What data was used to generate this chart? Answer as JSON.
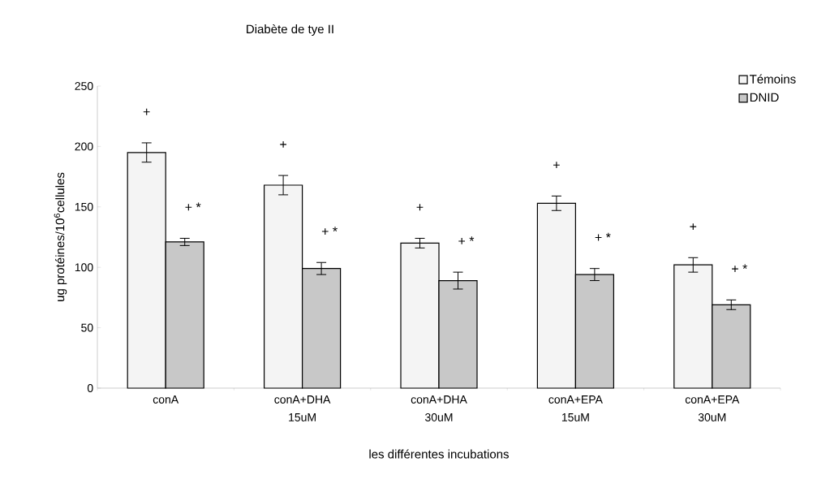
{
  "chart_data": {
    "type": "bar",
    "title": "Diabète de tye II",
    "xlabel": "les différentes incubations",
    "ylabel": "ug protéines/10$^{6}$cellules",
    "categories": [
      "conA",
      "conA+DHA 15uM",
      "conA+DHA 30uM",
      "conA+EPA 15uM",
      "conA+EPA 30uM"
    ],
    "series": [
      {
        "name": "Témoins",
        "color": "#f4f4f4",
        "values": [
          195,
          168,
          120,
          153,
          102
        ],
        "errors": [
          8,
          8,
          4,
          6,
          6
        ]
      },
      {
        "name": "DNID",
        "color": "#c8c8c8",
        "values": [
          121,
          99,
          89,
          94,
          69
        ],
        "errors": [
          3,
          5,
          7,
          5,
          4
        ]
      }
    ],
    "ylim": [
      0,
      250
    ],
    "yticks": [
      0,
      50,
      100,
      150,
      200,
      250
    ],
    "legend": "top right",
    "annotations": [
      "+",
      "+ *",
      "+",
      "+ *",
      "+",
      "+ *",
      "+",
      "+ *",
      "+",
      "+ *"
    ]
  }
}
